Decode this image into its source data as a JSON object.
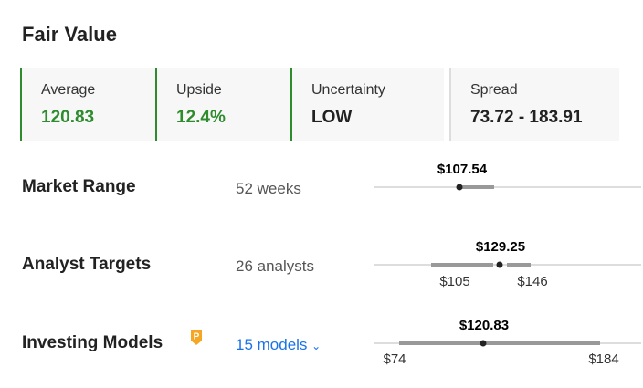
{
  "title": "Fair Value",
  "summary": [
    {
      "label": "Average",
      "value": "120.83"
    },
    {
      "label": "Upside",
      "value": "12.4%"
    },
    {
      "label": "Uncertainty",
      "value": "LOW"
    },
    {
      "label": "Spread",
      "value": "73.72 - 183.91"
    }
  ],
  "rows": [
    {
      "label": "Market Range",
      "detail": "52 weeks",
      "value_label": "$107.54"
    },
    {
      "label": "Analyst Targets",
      "detail": "26 analysts",
      "value_label": "$129.25",
      "low_label": "$105",
      "high_label": "$146"
    },
    {
      "label": "Investing Models",
      "detail": "15 models",
      "value_label": "$120.83",
      "low_label": "$74",
      "high_label": "$184"
    }
  ]
}
